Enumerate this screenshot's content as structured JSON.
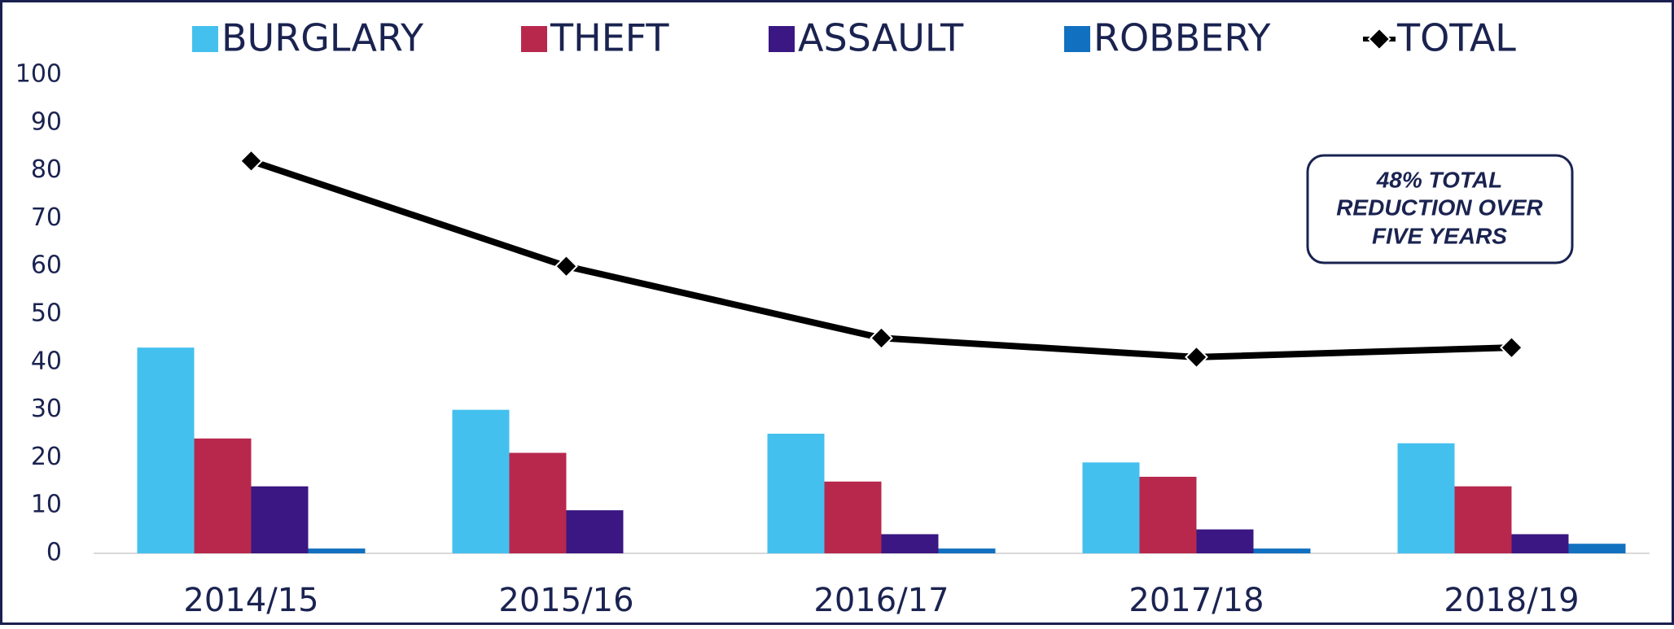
{
  "chart_data": {
    "type": "bar_line",
    "categories": [
      "2014/15",
      "2015/16",
      "2016/17",
      "2017/18",
      "2018/19"
    ],
    "series": [
      {
        "name": "BURGLARY",
        "color": "#44c0ee",
        "type": "bar",
        "values": [
          43,
          30,
          25,
          19,
          23
        ]
      },
      {
        "name": "THEFT",
        "color": "#b8284d",
        "type": "bar",
        "values": [
          24,
          21,
          15,
          16,
          14
        ]
      },
      {
        "name": "ASSAULT",
        "color": "#3a1782",
        "type": "bar",
        "values": [
          14,
          9,
          4,
          5,
          4
        ]
      },
      {
        "name": "ROBBERY",
        "color": "#1170c0",
        "type": "bar",
        "values": [
          1,
          0,
          1,
          1,
          2
        ]
      },
      {
        "name": "TOTAL",
        "color": "#000000",
        "type": "line",
        "values": [
          82,
          60,
          45,
          41,
          43
        ]
      }
    ],
    "ylim": [
      0,
      100
    ],
    "yticks": [
      0,
      10,
      20,
      30,
      40,
      50,
      60,
      70,
      80,
      90,
      100
    ],
    "grid": false,
    "legend": "top",
    "annotation": [
      "48% TOTAL",
      "REDUCTION OVER",
      "FIVE YEARS"
    ]
  }
}
